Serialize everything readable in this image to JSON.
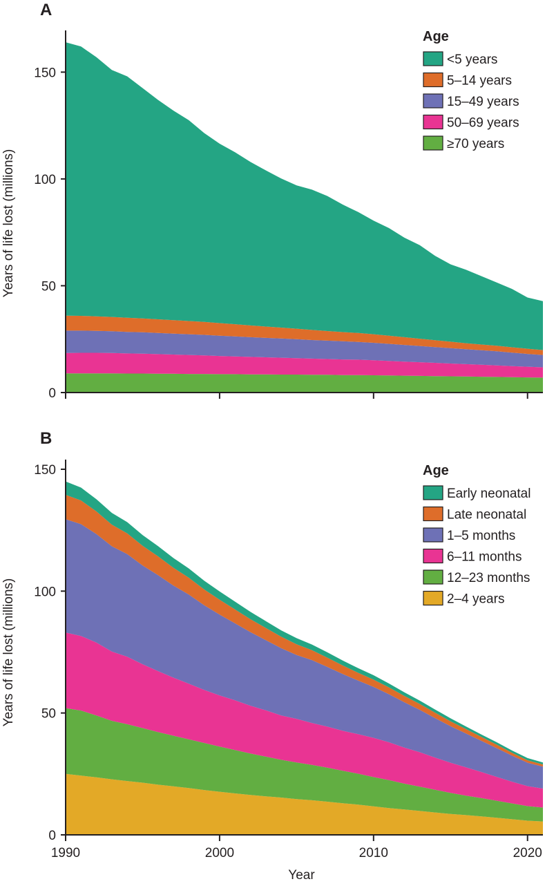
{
  "chart_data": [
    {
      "type": "area",
      "stacked": true,
      "panel_label": "A",
      "ylabel": "Years of life lost (millions)",
      "xlabel": "",
      "xlim": [
        1990,
        2021
      ],
      "ylim": [
        0,
        165
      ],
      "x_ticks": [
        1990,
        2000,
        2010,
        2020
      ],
      "x_tick_labels": [
        "",
        "",
        "",
        ""
      ],
      "y_ticks": [
        0,
        50,
        100,
        150
      ],
      "y_tick_labels": [
        "0",
        "50",
        "100",
        "150"
      ],
      "legend": {
        "title": "Age",
        "position": "top-right"
      },
      "x": [
        1990,
        1991,
        1992,
        1993,
        1994,
        1995,
        1996,
        1997,
        1998,
        1999,
        2000,
        2001,
        2002,
        2003,
        2004,
        2005,
        2006,
        2007,
        2008,
        2009,
        2010,
        2011,
        2012,
        2013,
        2014,
        2015,
        2016,
        2017,
        2018,
        2019,
        2020,
        2021
      ],
      "series": [
        {
          "name": "≥70 years",
          "color": "#62ae42",
          "values": [
            9.0,
            9.0,
            9.0,
            9.0,
            8.9,
            8.9,
            8.8,
            8.8,
            8.7,
            8.7,
            8.6,
            8.6,
            8.5,
            8.5,
            8.4,
            8.4,
            8.3,
            8.3,
            8.2,
            8.2,
            8.1,
            8.0,
            7.9,
            7.8,
            7.7,
            7.6,
            7.5,
            7.4,
            7.3,
            7.2,
            7.1,
            7.0
          ]
        },
        {
          "name": "50–69 years",
          "color": "#e93493",
          "values": [
            9.5,
            9.6,
            9.6,
            9.5,
            9.4,
            9.3,
            9.2,
            9.0,
            8.9,
            8.7,
            8.5,
            8.3,
            8.2,
            8.0,
            7.9,
            7.7,
            7.6,
            7.4,
            7.3,
            7.2,
            7.0,
            6.8,
            6.6,
            6.4,
            6.2,
            6.0,
            5.8,
            5.6,
            5.4,
            5.2,
            5.0,
            4.8
          ]
        },
        {
          "name": "15–49 years",
          "color": "#6e71b6",
          "values": [
            10.5,
            10.4,
            10.3,
            10.2,
            10.1,
            10.0,
            9.9,
            9.8,
            9.7,
            9.6,
            9.5,
            9.4,
            9.2,
            9.1,
            9.0,
            8.9,
            8.7,
            8.6,
            8.5,
            8.3,
            8.2,
            8.0,
            7.8,
            7.6,
            7.4,
            7.2,
            7.0,
            6.8,
            6.6,
            6.3,
            6.0,
            5.8
          ]
        },
        {
          "name": "5–14 years",
          "color": "#de6d2a",
          "values": [
            7.0,
            6.9,
            6.8,
            6.7,
            6.6,
            6.5,
            6.4,
            6.3,
            6.2,
            6.1,
            5.9,
            5.7,
            5.5,
            5.3,
            5.1,
            4.9,
            4.7,
            4.5,
            4.3,
            4.2,
            4.0,
            3.8,
            3.6,
            3.4,
            3.2,
            3.0,
            2.8,
            2.7,
            2.6,
            2.5,
            2.4,
            2.3
          ]
        },
        {
          "name": "<5 years",
          "color": "#24a584",
          "values": [
            128.0,
            126.1,
            121.3,
            115.6,
            113.0,
            107.8,
            102.7,
            98.1,
            94.0,
            88.4,
            84.0,
            80.5,
            76.6,
            73.1,
            69.8,
            67.1,
            65.7,
            63.2,
            59.7,
            56.6,
            53.2,
            50.4,
            46.6,
            43.8,
            39.5,
            36.2,
            34.4,
            32.0,
            29.6,
            27.3,
            24.0,
            22.9
          ]
        }
      ]
    },
    {
      "type": "area",
      "stacked": true,
      "panel_label": "B",
      "ylabel": "Years of life lost (millions)",
      "xlabel": "Year",
      "xlim": [
        1990,
        2021
      ],
      "ylim": [
        0,
        150
      ],
      "x_ticks": [
        1990,
        2000,
        2010,
        2020
      ],
      "x_tick_labels": [
        "1990",
        "2000",
        "2010",
        "2020"
      ],
      "y_ticks": [
        0,
        50,
        100,
        150
      ],
      "y_tick_labels": [
        "0",
        "50",
        "100",
        "150"
      ],
      "legend": {
        "title": "Age",
        "position": "top-right"
      },
      "x": [
        1990,
        1991,
        1992,
        1993,
        1994,
        1995,
        1996,
        1997,
        1998,
        1999,
        2000,
        2001,
        2002,
        2003,
        2004,
        2005,
        2006,
        2007,
        2008,
        2009,
        2010,
        2011,
        2012,
        2013,
        2014,
        2015,
        2016,
        2017,
        2018,
        2019,
        2020,
        2021
      ],
      "series": [
        {
          "name": "2–4 years",
          "color": "#e3a927",
          "values": [
            25.0,
            24.3,
            23.6,
            22.8,
            22.1,
            21.4,
            20.6,
            19.9,
            19.2,
            18.4,
            17.7,
            17.0,
            16.4,
            15.8,
            15.3,
            14.7,
            14.2,
            13.6,
            13.0,
            12.4,
            11.7,
            11.0,
            10.4,
            9.8,
            9.2,
            8.6,
            8.1,
            7.6,
            7.0,
            6.4,
            5.8,
            5.5
          ]
        },
        {
          "name": "12–23 months",
          "color": "#62ae42",
          "values": [
            27.0,
            26.7,
            25.4,
            24.0,
            23.3,
            22.4,
            21.6,
            20.8,
            20.0,
            19.3,
            18.5,
            17.8,
            17.0,
            16.3,
            15.5,
            15.0,
            14.5,
            14.0,
            13.3,
            12.7,
            12.0,
            11.5,
            10.6,
            10.0,
            9.3,
            8.6,
            8.0,
            7.5,
            7.0,
            6.5,
            6.0,
            5.7
          ]
        },
        {
          "name": "6–11 months",
          "color": "#e93493",
          "values": [
            31.0,
            30.6,
            29.9,
            28.4,
            27.7,
            26.2,
            25.0,
            23.8,
            22.8,
            21.8,
            21.0,
            20.4,
            19.6,
            19.0,
            18.2,
            17.9,
            17.2,
            16.8,
            16.4,
            16.2,
            16.1,
            15.5,
            14.8,
            14.1,
            13.2,
            12.4,
            11.6,
            10.7,
            9.8,
            8.9,
            8.2,
            7.8
          ]
        },
        {
          "name": "1–5 months",
          "color": "#6e71b6",
          "values": [
            46.5,
            45.9,
            44.5,
            43.2,
            42.1,
            40.5,
            39.4,
            37.8,
            36.6,
            34.7,
            33.2,
            31.6,
            30.2,
            28.8,
            27.6,
            26.2,
            25.8,
            24.5,
            23.3,
            22.0,
            20.9,
            19.7,
            18.6,
            17.4,
            16.2,
            15.0,
            13.9,
            12.8,
            11.8,
            10.7,
            9.6,
            9.0
          ]
        },
        {
          "name": "Late neonatal",
          "color": "#de6d2a",
          "values": [
            10.0,
            9.7,
            9.3,
            8.9,
            8.5,
            8.1,
            7.7,
            7.3,
            6.9,
            6.5,
            6.1,
            5.7,
            5.3,
            5.0,
            4.7,
            4.4,
            4.1,
            3.8,
            3.5,
            3.2,
            3.0,
            2.8,
            2.6,
            2.4,
            2.2,
            2.0,
            1.8,
            1.6,
            1.4,
            1.2,
            1.0,
            0.9
          ]
        },
        {
          "name": "Early neonatal",
          "color": "#24a584",
          "values": [
            5.5,
            5.3,
            5.0,
            4.8,
            4.6,
            4.4,
            4.2,
            4.0,
            3.8,
            3.6,
            3.4,
            3.2,
            3.0,
            2.8,
            2.6,
            2.5,
            2.3,
            2.2,
            2.0,
            1.9,
            1.8,
            1.6,
            1.5,
            1.4,
            1.3,
            1.2,
            1.1,
            1.0,
            1.0,
            0.9,
            0.9,
            0.8
          ]
        }
      ]
    }
  ]
}
